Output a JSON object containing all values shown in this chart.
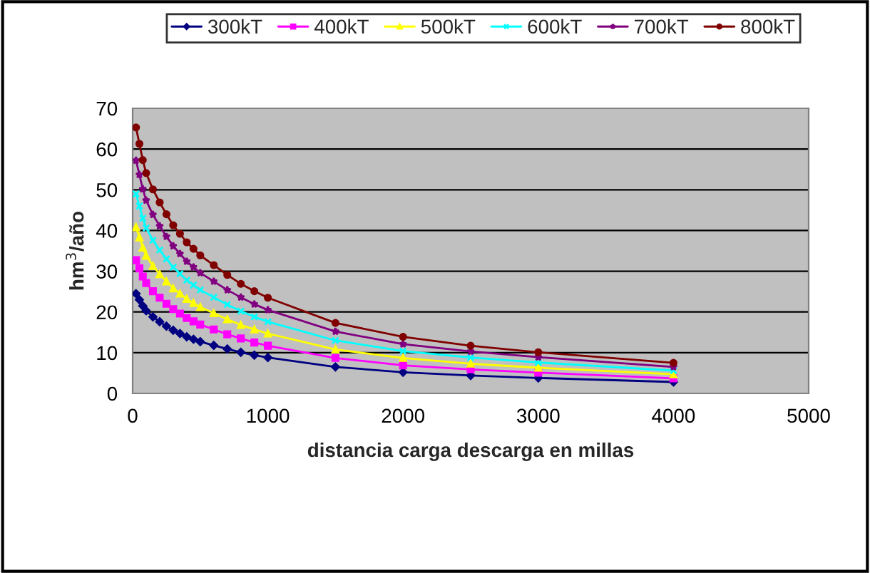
{
  "chart_data": {
    "type": "line",
    "xlabel": "distancia carga descarga en millas",
    "ylabel": "hm$^{3}$/año",
    "x": [
      25,
      50,
      75,
      100,
      150,
      200,
      250,
      300,
      350,
      400,
      450,
      500,
      600,
      700,
      800,
      900,
      1000,
      1500,
      2000,
      2500,
      3000,
      4000
    ],
    "xlim": [
      0,
      5000
    ],
    "xticks": [
      0,
      1000,
      2000,
      3000,
      4000,
      5000
    ],
    "ylim": [
      0,
      70
    ],
    "yticks": [
      0,
      10,
      20,
      30,
      40,
      50,
      60,
      70
    ],
    "grid": "y",
    "legend": "top",
    "series": [
      {
        "name": "300kT",
        "color": "#000080",
        "marker": "diamond",
        "values": [
          24.5,
          23,
          21.5,
          20.3,
          18.8,
          17.6,
          16.5,
          15.5,
          14.7,
          13.9,
          13.3,
          12.7,
          11.8,
          10.9,
          10.1,
          9.4,
          8.8,
          6.5,
          5.2,
          4.4,
          3.8,
          2.8
        ]
      },
      {
        "name": "400kT",
        "color": "#ff00ff",
        "marker": "square",
        "values": [
          32.7,
          30.7,
          28.7,
          27.1,
          25.1,
          23.5,
          22,
          20.7,
          19.6,
          18.5,
          17.7,
          16.9,
          15.7,
          14.5,
          13.5,
          12.5,
          11.7,
          8.7,
          6.9,
          5.9,
          5.1,
          3.7
        ]
      },
      {
        "name": "500kT",
        "color": "#ffff00",
        "marker": "triangle",
        "values": [
          40.8,
          38.3,
          35.8,
          33.8,
          31.3,
          29.3,
          27.5,
          25.8,
          24.5,
          23.2,
          22.2,
          21.2,
          19.7,
          18.2,
          16.8,
          15.7,
          14.7,
          10.8,
          8.7,
          7.3,
          6.3,
          4.7
        ]
      },
      {
        "name": "600kT",
        "color": "#00ffff",
        "marker": "cross",
        "values": [
          49,
          46,
          43,
          40.6,
          37.6,
          35.2,
          33,
          31,
          29.4,
          27.8,
          26.6,
          25.4,
          23.6,
          21.8,
          20.2,
          18.8,
          17.6,
          13,
          10.4,
          8.8,
          7.6,
          5.6
        ]
      },
      {
        "name": "700kT",
        "color": "#800080",
        "marker": "star",
        "values": [
          57.2,
          53.7,
          50.2,
          47.4,
          43.9,
          41.1,
          38.5,
          36.2,
          34.3,
          32.4,
          31,
          29.6,
          27.5,
          25.4,
          23.6,
          21.9,
          20.5,
          15.2,
          12.1,
          10.3,
          8.9,
          6.5
        ]
      },
      {
        "name": "800kT",
        "color": "#800000",
        "marker": "circle",
        "values": [
          65.3,
          61.3,
          57.3,
          54.1,
          50.1,
          46.9,
          44,
          41.3,
          39.2,
          37.1,
          35.5,
          33.9,
          31.5,
          29.1,
          26.9,
          25.1,
          23.5,
          17.3,
          13.9,
          11.7,
          10.1,
          7.5
        ]
      }
    ]
  }
}
